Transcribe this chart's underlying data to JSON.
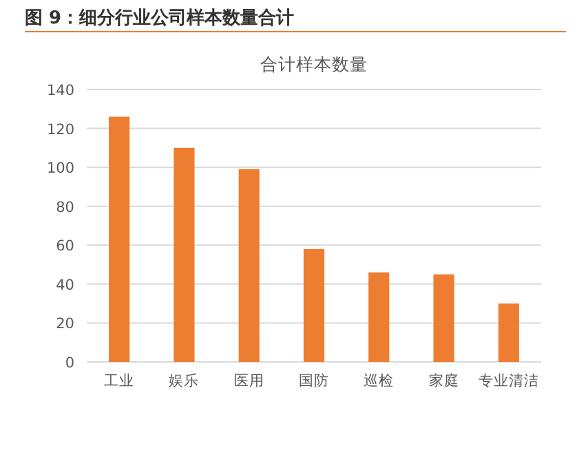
{
  "chart_data": {
    "type": "bar",
    "title": "图 9：细分行业公司样本数量合计",
    "subtitle": "合计样本数量",
    "categories": [
      "工业",
      "娱乐",
      "医用",
      "国防",
      "巡检",
      "家庭",
      "专业清洁"
    ],
    "values": [
      126,
      110,
      99,
      58,
      46,
      45,
      30
    ],
    "color": "#ed7d31",
    "ylim": [
      0,
      140
    ],
    "yticks": [
      0,
      20,
      40,
      60,
      80,
      100,
      120,
      140
    ],
    "grid": "y"
  }
}
